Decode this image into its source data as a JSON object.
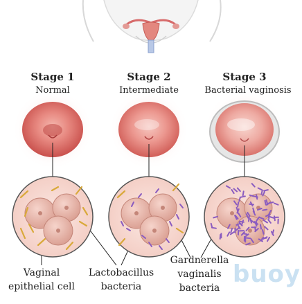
{
  "stages": [
    {
      "title": "Stage 1",
      "subtitle": "Normal"
    },
    {
      "title": "Stage 2",
      "subtitle": "Intermediate"
    },
    {
      "title": "Stage 3",
      "subtitle": "Bacterial vaginosis"
    }
  ],
  "labels": {
    "epithelial_line1": "Vaginal",
    "epithelial_line2": "epithelial cell",
    "lacto_line1": "Lactobacillus",
    "lacto_line2": "bacteria",
    "gard_line1": "Gardnerella",
    "gard_line2": "vaginalis",
    "gard_line3": "bacteria"
  },
  "watermark": "buoy",
  "colors": {
    "tissue": "#e8837c",
    "tissue_dark": "#c84a4a",
    "cell": "#e9b9ad",
    "lactobacillus": "#d9a93a",
    "gardnerella": "#8a5cc0"
  }
}
